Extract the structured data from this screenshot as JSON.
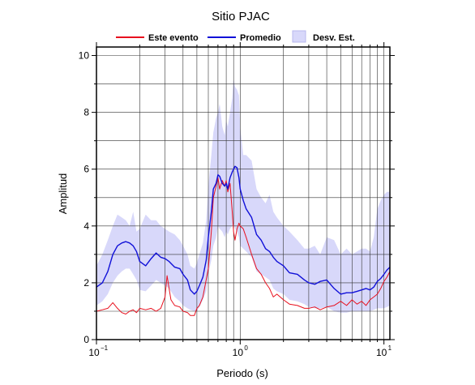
{
  "chart_data": {
    "type": "line",
    "title": "Sitio PJAC",
    "xlabel": "Periodo (s)",
    "ylabel": "Amplitud",
    "xscale": "log",
    "xlim": [
      0.1,
      11
    ],
    "ylim": [
      0,
      10.3
    ],
    "grid": true,
    "legend_position": "top",
    "x_tick_labels": [
      {
        "value": 0.1,
        "base": "10",
        "exp": "−1"
      },
      {
        "value": 1,
        "base": "10",
        "exp": "0"
      },
      {
        "value": 10,
        "base": "10",
        "exp": "1"
      }
    ],
    "y_ticks": [
      0,
      2,
      4,
      6,
      8,
      10
    ],
    "legend": {
      "event_label": "Este evento",
      "mean_label": "Promedio",
      "std_label": "Desv. Est."
    },
    "colors": {
      "event": "#e8101e",
      "mean": "#1010d8",
      "band_fill": "#d8d8fa",
      "band_stroke": "#b8b8ee",
      "grid": "#333333"
    },
    "series": [
      {
        "name": "Este evento",
        "x": [
          0.1,
          0.11,
          0.12,
          0.13,
          0.14,
          0.15,
          0.16,
          0.17,
          0.18,
          0.19,
          0.2,
          0.22,
          0.24,
          0.26,
          0.28,
          0.3,
          0.31,
          0.32,
          0.33,
          0.35,
          0.38,
          0.4,
          0.43,
          0.45,
          0.48,
          0.5,
          0.52,
          0.55,
          0.6,
          0.63,
          0.65,
          0.68,
          0.7,
          0.72,
          0.75,
          0.78,
          0.8,
          0.82,
          0.85,
          0.88,
          0.9,
          0.92,
          0.95,
          0.98,
          1.0,
          1.05,
          1.1,
          1.2,
          1.3,
          1.4,
          1.5,
          1.6,
          1.7,
          1.8,
          2.0,
          2.2,
          2.5,
          2.8,
          3.0,
          3.3,
          3.6,
          4.0,
          4.5,
          5.0,
          5.5,
          6.0,
          6.5,
          7.0,
          7.5,
          8.0,
          8.5,
          9.0,
          9.5,
          10.0,
          10.5,
          11.0
        ],
        "values": [
          1.0,
          1.05,
          1.1,
          1.3,
          1.1,
          0.95,
          0.9,
          1.0,
          1.05,
          0.95,
          1.1,
          1.05,
          1.1,
          1.0,
          1.1,
          1.5,
          2.25,
          1.8,
          1.4,
          1.2,
          1.15,
          1.0,
          0.95,
          0.85,
          0.85,
          1.1,
          1.2,
          1.5,
          2.5,
          3.8,
          5.0,
          5.4,
          5.7,
          5.3,
          5.6,
          5.4,
          5.6,
          5.2,
          5.5,
          4.5,
          3.8,
          3.5,
          3.9,
          4.1,
          4.0,
          3.9,
          3.6,
          3.0,
          2.5,
          2.3,
          2.0,
          1.8,
          1.5,
          1.6,
          1.4,
          1.25,
          1.2,
          1.1,
          1.1,
          1.15,
          1.05,
          1.15,
          1.2,
          1.35,
          1.2,
          1.4,
          1.25,
          1.35,
          1.2,
          1.4,
          1.5,
          1.6,
          1.8,
          2.05,
          2.2,
          2.4
        ]
      },
      {
        "name": "Promedio",
        "x": [
          0.1,
          0.11,
          0.12,
          0.13,
          0.14,
          0.15,
          0.16,
          0.17,
          0.18,
          0.19,
          0.2,
          0.22,
          0.24,
          0.26,
          0.28,
          0.3,
          0.32,
          0.35,
          0.38,
          0.4,
          0.43,
          0.45,
          0.48,
          0.5,
          0.52,
          0.55,
          0.58,
          0.6,
          0.63,
          0.65,
          0.68,
          0.7,
          0.72,
          0.75,
          0.78,
          0.8,
          0.82,
          0.85,
          0.88,
          0.9,
          0.92,
          0.95,
          0.98,
          1.0,
          1.05,
          1.1,
          1.2,
          1.3,
          1.4,
          1.5,
          1.6,
          1.7,
          1.8,
          2.0,
          2.2,
          2.5,
          2.8,
          3.0,
          3.3,
          3.6,
          4.0,
          4.5,
          5.0,
          5.5,
          6.0,
          6.5,
          7.0,
          7.5,
          8.0,
          8.5,
          9.0,
          9.5,
          10.0,
          10.5,
          11.0
        ],
        "values": [
          1.85,
          2.0,
          2.4,
          3.0,
          3.3,
          3.4,
          3.45,
          3.4,
          3.3,
          3.1,
          2.75,
          2.6,
          2.85,
          3.05,
          2.9,
          2.85,
          2.75,
          2.55,
          2.5,
          2.3,
          2.1,
          1.75,
          1.6,
          1.7,
          1.9,
          2.2,
          2.8,
          3.6,
          4.5,
          5.3,
          5.5,
          5.8,
          5.75,
          5.5,
          5.4,
          5.5,
          5.3,
          5.7,
          5.9,
          6.0,
          6.1,
          6.05,
          5.7,
          5.3,
          4.9,
          4.6,
          4.3,
          3.7,
          3.5,
          3.2,
          3.1,
          2.9,
          2.75,
          2.6,
          2.35,
          2.3,
          2.1,
          2.0,
          1.95,
          2.05,
          2.1,
          1.8,
          1.6,
          1.65,
          1.65,
          1.7,
          1.75,
          1.8,
          1.75,
          1.85,
          2.05,
          2.15,
          2.3,
          2.45,
          2.55
        ]
      }
    ],
    "band": {
      "name": "Desv. Est.",
      "x": [
        0.1,
        0.11,
        0.12,
        0.13,
        0.14,
        0.15,
        0.16,
        0.17,
        0.18,
        0.19,
        0.2,
        0.22,
        0.24,
        0.26,
        0.28,
        0.3,
        0.32,
        0.35,
        0.38,
        0.4,
        0.43,
        0.45,
        0.48,
        0.5,
        0.52,
        0.55,
        0.58,
        0.6,
        0.63,
        0.65,
        0.68,
        0.7,
        0.72,
        0.75,
        0.78,
        0.8,
        0.82,
        0.85,
        0.88,
        0.9,
        0.92,
        0.95,
        0.98,
        1.0,
        1.05,
        1.1,
        1.2,
        1.3,
        1.4,
        1.5,
        1.6,
        1.7,
        1.8,
        2.0,
        2.2,
        2.5,
        2.8,
        3.0,
        3.3,
        3.6,
        4.0,
        4.5,
        5.0,
        5.5,
        6.0,
        6.5,
        7.0,
        7.5,
        8.0,
        8.5,
        9.0,
        9.5,
        10.0,
        10.5,
        11.0
      ],
      "upper": [
        2.6,
        3.0,
        3.5,
        4.0,
        4.4,
        4.3,
        4.2,
        4.0,
        4.5,
        3.8,
        3.9,
        4.4,
        4.2,
        4.2,
        4.0,
        3.9,
        3.8,
        3.7,
        3.5,
        3.3,
        3.0,
        2.6,
        2.5,
        2.7,
        3.0,
        3.4,
        4.2,
        5.4,
        6.5,
        7.3,
        7.8,
        8.0,
        8.3,
        7.5,
        7.2,
        7.7,
        7.5,
        8.0,
        8.5,
        9.2,
        8.9,
        8.8,
        8.6,
        7.5,
        6.5,
        6.5,
        6.3,
        5.3,
        5.0,
        4.8,
        5.1,
        4.5,
        4.3,
        4.0,
        3.8,
        3.5,
        3.2,
        3.2,
        3.3,
        3.0,
        3.6,
        3.5,
        3.0,
        3.2,
        3.0,
        3.1,
        3.2,
        3.2,
        3.1,
        3.6,
        4.6,
        4.9,
        5.1,
        5.2,
        5.2
      ],
      "lower": [
        1.2,
        1.35,
        1.6,
        2.0,
        2.25,
        2.4,
        2.5,
        2.5,
        2.3,
        2.1,
        1.75,
        1.7,
        1.9,
        2.1,
        2.0,
        1.9,
        1.8,
        1.5,
        1.35,
        1.2,
        1.1,
        1.05,
        1.0,
        1.0,
        1.15,
        1.4,
        1.7,
        2.3,
        2.8,
        3.3,
        3.6,
        4.0,
        3.9,
        3.8,
        3.6,
        3.8,
        3.7,
        3.9,
        4.0,
        4.1,
        3.9,
        3.8,
        3.6,
        3.3,
        3.2,
        3.1,
        2.9,
        2.4,
        2.3,
        2.2,
        2.1,
        1.8,
        1.7,
        1.6,
        1.4,
        1.35,
        1.25,
        1.15,
        1.1,
        1.1,
        1.15,
        1.0,
        0.95,
        0.95,
        1.0,
        1.0,
        1.0,
        1.0,
        1.0,
        1.05,
        1.1,
        1.1,
        1.1,
        1.15,
        1.2
      ]
    }
  }
}
